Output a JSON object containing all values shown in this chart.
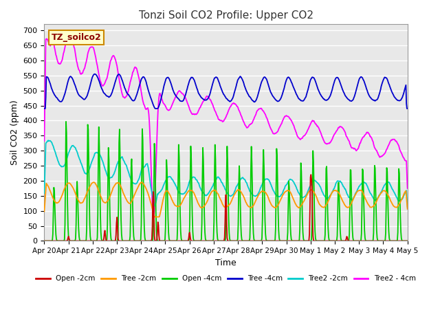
{
  "title": "Tonzi Soil CO2 Profile: Upper CO2",
  "ylabel": "Soil CO2 (ppm)",
  "xlabel": "Time",
  "legend_label": "TZ_soilco2",
  "ylim": [
    0,
    720
  ],
  "yticks": [
    0,
    50,
    100,
    150,
    200,
    250,
    300,
    350,
    400,
    450,
    500,
    550,
    600,
    650,
    700
  ],
  "series_labels": [
    "Open -2cm",
    "Tree -2cm",
    "Open -4cm",
    "Tree -4cm",
    "Tree2 -2cm",
    "Tree2 - 4cm"
  ],
  "series_colors": [
    "#cc0000",
    "#ff9900",
    "#00cc00",
    "#0000cc",
    "#00cccc",
    "#ff00ff"
  ],
  "bg_color": "#e8e8e8",
  "grid_color": "#ffffff",
  "title_color": "#333333",
  "tick_labels": [
    "Apr 20",
    "Apr 21",
    "Apr 22",
    "Apr 23",
    "Apr 24",
    "Apr 25",
    "Apr 26",
    "Apr 27",
    "Apr 28",
    "Apr 29",
    "Apr 30",
    "May 1",
    "May 2",
    "May 3",
    "May 4",
    "May 5"
  ]
}
